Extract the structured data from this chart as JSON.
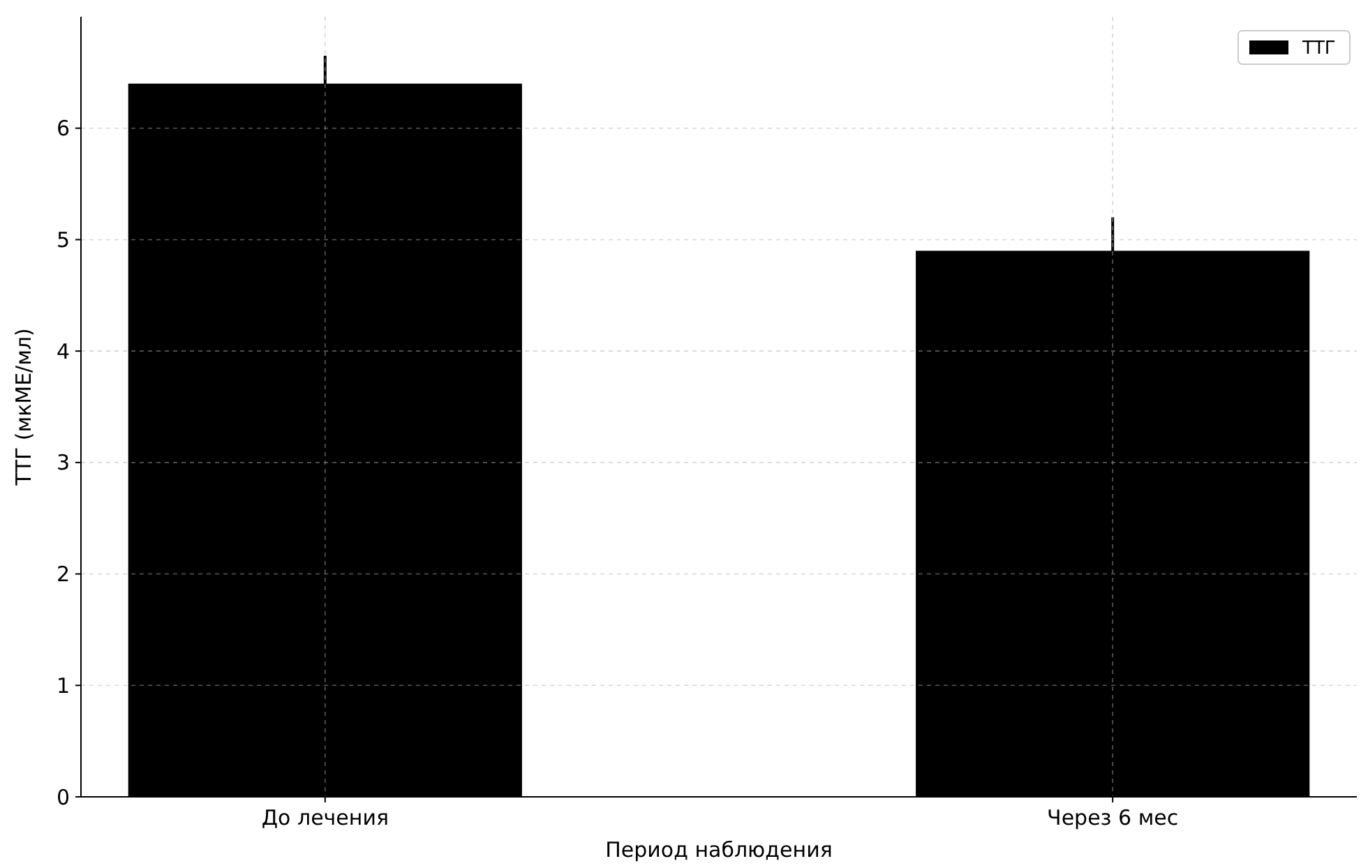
{
  "chart_data": {
    "type": "bar",
    "xlabel": "Период наблюдения",
    "ylabel": "ТТГ (мкМЕ/мл)",
    "categories": [
      "До лечения",
      "Через 6 мес"
    ],
    "series": [
      {
        "name": "ТТГ",
        "color": "#000000",
        "values": [
          6.4,
          4.9
        ],
        "errors": [
          0.25,
          0.3
        ]
      }
    ],
    "ylim": [
      0,
      7
    ],
    "yticks": [
      0,
      1,
      2,
      3,
      4,
      5,
      6
    ],
    "grid": true,
    "legend": "top right"
  }
}
